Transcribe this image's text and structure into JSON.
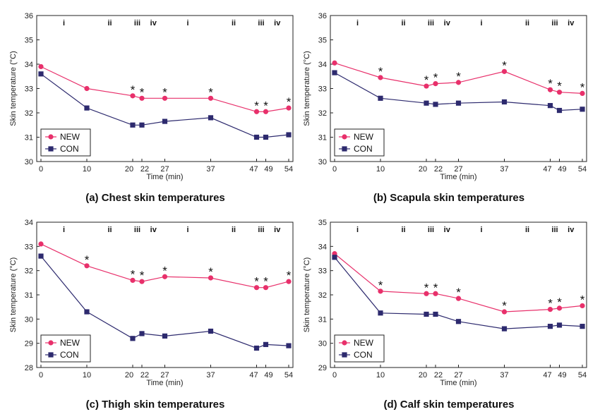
{
  "chart_data": [
    {
      "type": "line",
      "caption": "(a) Chest skin temperatures",
      "xlabel": "Time (min)",
      "ylabel": "Skin temperature (°C)",
      "ylim": [
        30,
        36
      ],
      "yticks": [
        "30",
        "31",
        "32",
        "33",
        "34",
        "35",
        "36"
      ],
      "x": [
        0,
        10,
        20,
        22,
        27,
        37,
        47,
        49,
        54
      ],
      "xtick_labels": [
        "0",
        "10",
        "20",
        "22",
        "27",
        "37",
        "47",
        "49",
        "54"
      ],
      "phases": [
        {
          "label": "i",
          "x": 5
        },
        {
          "label": "ii",
          "x": 15
        },
        {
          "label": "iii",
          "x": 21
        },
        {
          "label": "iv",
          "x": 24.5
        },
        {
          "label": "i",
          "x": 32
        },
        {
          "label": "ii",
          "x": 42
        },
        {
          "label": "iii",
          "x": 48
        },
        {
          "label": "iv",
          "x": 51.5
        }
      ],
      "series": [
        {
          "name": "NEW",
          "color": "#e8306b",
          "marker": "circle",
          "values": [
            33.9,
            33.0,
            32.7,
            32.6,
            32.6,
            32.6,
            32.05,
            32.05,
            32.2
          ]
        },
        {
          "name": "CON",
          "color": "#2d2a6e",
          "marker": "square",
          "values": [
            33.6,
            32.2,
            31.5,
            31.5,
            31.65,
            31.8,
            31.0,
            31.0,
            31.1
          ]
        }
      ],
      "significance": [
        "",
        "",
        "*",
        "*",
        "*",
        "*",
        "*",
        "*",
        "*"
      ],
      "legend_position": "bottom-left",
      "grid": false
    },
    {
      "type": "line",
      "caption": "(b) Scapula skin temperatures",
      "xlabel": "Time (min)",
      "ylabel": "Skin temperature (°C)",
      "ylim": [
        30,
        36
      ],
      "yticks": [
        "30",
        "31",
        "32",
        "33",
        "34",
        "35",
        "36"
      ],
      "x": [
        0,
        10,
        20,
        22,
        27,
        37,
        47,
        49,
        54
      ],
      "xtick_labels": [
        "0",
        "10",
        "20",
        "22",
        "27",
        "37",
        "47",
        "49",
        "54"
      ],
      "phases": [
        {
          "label": "i",
          "x": 5
        },
        {
          "label": "ii",
          "x": 15
        },
        {
          "label": "iii",
          "x": 21
        },
        {
          "label": "iv",
          "x": 24.5
        },
        {
          "label": "i",
          "x": 32
        },
        {
          "label": "ii",
          "x": 42
        },
        {
          "label": "iii",
          "x": 48
        },
        {
          "label": "iv",
          "x": 51.5
        }
      ],
      "series": [
        {
          "name": "NEW",
          "color": "#e8306b",
          "marker": "circle",
          "values": [
            34.05,
            33.45,
            33.1,
            33.2,
            33.25,
            33.7,
            32.95,
            32.85,
            32.8
          ]
        },
        {
          "name": "CON",
          "color": "#2d2a6e",
          "marker": "square",
          "values": [
            33.65,
            32.6,
            32.4,
            32.35,
            32.4,
            32.45,
            32.3,
            32.1,
            32.15
          ]
        }
      ],
      "significance": [
        "",
        "*",
        "*",
        "*",
        "*",
        "*",
        "*",
        "*",
        "*"
      ],
      "legend_position": "bottom-left",
      "grid": false
    },
    {
      "type": "line",
      "caption": "(c) Thigh skin temperatures",
      "xlabel": "Time (min)",
      "ylabel": "Skin temperature (°C)",
      "ylim": [
        28,
        34
      ],
      "yticks": [
        "28",
        "29",
        "30",
        "31",
        "32",
        "33",
        "34"
      ],
      "x": [
        0,
        10,
        20,
        22,
        27,
        37,
        47,
        49,
        54
      ],
      "xtick_labels": [
        "0",
        "10",
        "20",
        "22",
        "27",
        "37",
        "47",
        "49",
        "54"
      ],
      "phases": [
        {
          "label": "i",
          "x": 5
        },
        {
          "label": "ii",
          "x": 15
        },
        {
          "label": "iii",
          "x": 21
        },
        {
          "label": "iv",
          "x": 24.5
        },
        {
          "label": "i",
          "x": 32
        },
        {
          "label": "ii",
          "x": 42
        },
        {
          "label": "iii",
          "x": 48
        },
        {
          "label": "iv",
          "x": 51.5
        }
      ],
      "series": [
        {
          "name": "NEW",
          "color": "#e8306b",
          "marker": "circle",
          "values": [
            33.1,
            32.2,
            31.6,
            31.55,
            31.75,
            31.7,
            31.3,
            31.3,
            31.55
          ]
        },
        {
          "name": "CON",
          "color": "#2d2a6e",
          "marker": "square",
          "values": [
            32.6,
            30.3,
            29.2,
            29.4,
            29.3,
            29.5,
            28.8,
            28.95,
            28.9
          ]
        }
      ],
      "significance": [
        "",
        "*",
        "*",
        "*",
        "*",
        "*",
        "*",
        "*",
        "*"
      ],
      "legend_position": "bottom-left",
      "grid": false
    },
    {
      "type": "line",
      "caption": "(d) Calf skin temperatures",
      "xlabel": "Time (min)",
      "ylabel": "Skin temperature (°C)",
      "ylim": [
        29,
        35
      ],
      "yticks": [
        "29",
        "30",
        "31",
        "32",
        "33",
        "34",
        "35"
      ],
      "x": [
        0,
        10,
        20,
        22,
        27,
        37,
        47,
        49,
        54
      ],
      "xtick_labels": [
        "0",
        "10",
        "20",
        "22",
        "27",
        "37",
        "47",
        "49",
        "54"
      ],
      "phases": [
        {
          "label": "i",
          "x": 5
        },
        {
          "label": "ii",
          "x": 15
        },
        {
          "label": "iii",
          "x": 21
        },
        {
          "label": "iv",
          "x": 24.5
        },
        {
          "label": "i",
          "x": 32
        },
        {
          "label": "ii",
          "x": 42
        },
        {
          "label": "iii",
          "x": 48
        },
        {
          "label": "iv",
          "x": 51.5
        }
      ],
      "series": [
        {
          "name": "NEW",
          "color": "#e8306b",
          "marker": "circle",
          "values": [
            33.7,
            32.15,
            32.05,
            32.05,
            31.85,
            31.3,
            31.4,
            31.45,
            31.55
          ]
        },
        {
          "name": "CON",
          "color": "#2d2a6e",
          "marker": "square",
          "values": [
            33.55,
            31.25,
            31.2,
            31.2,
            30.9,
            30.6,
            30.7,
            30.75,
            30.7
          ]
        }
      ],
      "significance": [
        "",
        "*",
        "*",
        "*",
        "*",
        "*",
        "*",
        "*",
        "*"
      ],
      "legend_position": "bottom-left",
      "grid": false
    }
  ]
}
